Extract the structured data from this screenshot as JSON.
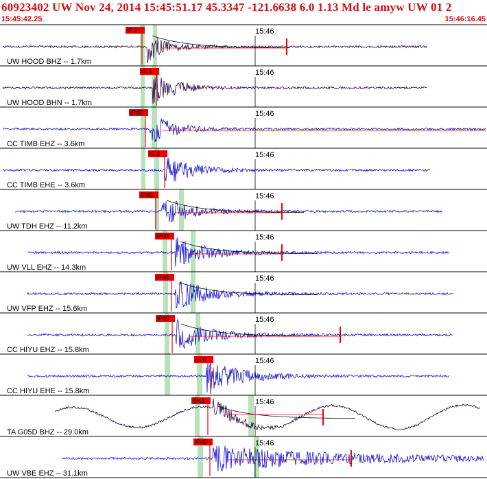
{
  "header": {
    "title": "60923402 UW Nov 24, 2014 15:45:51.17    45.3347 -121.6638  6.0 1.13 Md le amyw UW 01   2",
    "start_time": "15:45:42.25",
    "end_time": "15:46:16.45"
  },
  "time_marker_label": "15:46",
  "colors": {
    "header_text": "#d01010",
    "trace_blue": "#1010d0",
    "trace_dark": "#200040",
    "pick_red": "#ee0000",
    "window_green": "#b8e2b8"
  },
  "traces": [
    {
      "label": "UW HOOD BHZ -- 1.7km",
      "pick": "iP 1",
      "color": "#200040",
      "seed": 1
    },
    {
      "label": "UW HOOD BHN -- 1.7km",
      "pick": "iS 1",
      "color": "#200040",
      "seed": 2
    },
    {
      "label": "CC TIMB EHZ -- 3.6km",
      "pick": "iPd0",
      "color": "#1010d0",
      "seed": 3
    },
    {
      "label": "CC TIMB EHE -- 3.6km",
      "pick": "iS 0",
      "color": "#1010d0",
      "seed": 4
    },
    {
      "label": "UW TDH EHZ -- 11.2km",
      "pick": "iPd0",
      "color": "#1010d0",
      "seed": 5
    },
    {
      "label": "UW VLL EHZ -- 14.3km",
      "pick": "iPd0",
      "color": "#1010d0",
      "seed": 6
    },
    {
      "label": "UW VFP EHZ -- 15.6km",
      "pick": "iPd0",
      "color": "#1010d0",
      "seed": 7
    },
    {
      "label": "CC HIYU EHZ -- 15.8km",
      "pick": "iPd0",
      "color": "#1010d0",
      "seed": 8
    },
    {
      "label": "CC HIYU EHE -- 15.8km",
      "pick": "iS 0",
      "color": "#1010d0",
      "seed": 9
    },
    {
      "label": "TA G05D BHZ -- 29.0km",
      "pick": "iPc1",
      "color": "#200040",
      "seed": 10
    },
    {
      "label": "UW VBE EHZ -- 31.1km",
      "pick": "iPd0",
      "color": "#1010d0",
      "seed": 11
    }
  ]
}
